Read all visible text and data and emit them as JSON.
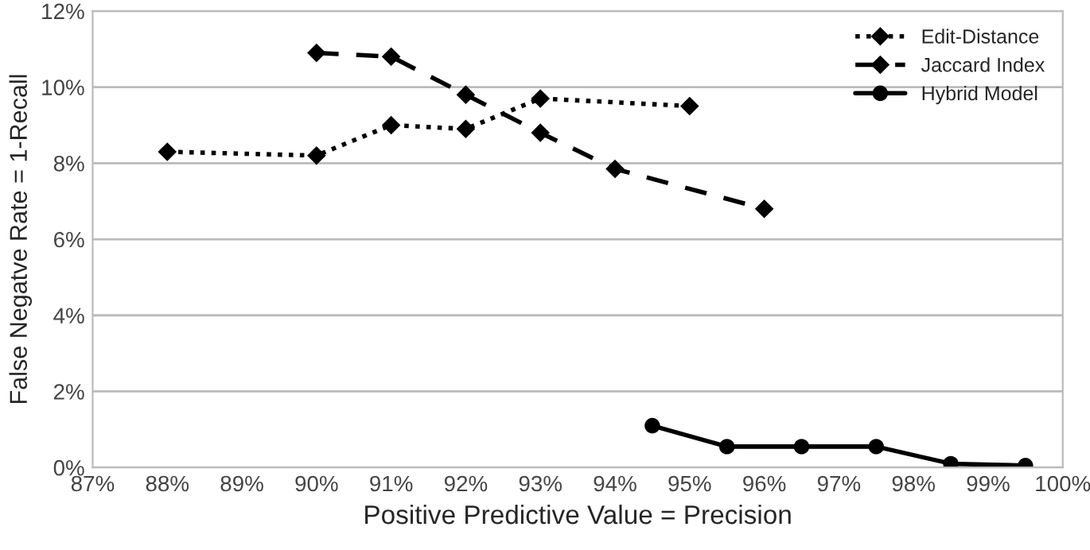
{
  "chart_data": {
    "type": "line",
    "xlabel": "Positive Predictive Value = Precision",
    "ylabel": "False Negatve Rate = 1-Recall",
    "xlim": [
      87,
      100
    ],
    "xticks": [
      {
        "value": 87,
        "label": "87%"
      },
      {
        "value": 88,
        "label": "88%"
      },
      {
        "value": 89,
        "label": "89%"
      },
      {
        "value": 90,
        "label": "90%"
      },
      {
        "value": 91,
        "label": "91%"
      },
      {
        "value": 92,
        "label": "92%"
      },
      {
        "value": 93,
        "label": "93%"
      },
      {
        "value": 94,
        "label": "94%"
      },
      {
        "value": 95,
        "label": "95%"
      },
      {
        "value": 96,
        "label": "96%"
      },
      {
        "value": 97,
        "label": "97%"
      },
      {
        "value": 98,
        "label": "98%"
      },
      {
        "value": 99,
        "label": "99%"
      },
      {
        "value": 100,
        "label": "100%"
      }
    ],
    "ylim": [
      0,
      12
    ],
    "yticks": [
      {
        "value": 0,
        "label": "0%"
      },
      {
        "value": 2,
        "label": "2%"
      },
      {
        "value": 4,
        "label": "4%"
      },
      {
        "value": 6,
        "label": "6%"
      },
      {
        "value": 8,
        "label": "8%"
      },
      {
        "value": 10,
        "label": "10%"
      },
      {
        "value": 12,
        "label": "12%"
      }
    ],
    "grid": "y",
    "legend": "top right",
    "series": [
      {
        "name": "Edit-Distance",
        "color": "#000000",
        "marker": "diamond",
        "line_style": "dotted",
        "x": [
          88,
          90,
          91,
          92,
          93,
          95
        ],
        "values": [
          8.3,
          8.2,
          9.0,
          8.9,
          9.7,
          9.5
        ]
      },
      {
        "name": "Jaccard Index",
        "color": "#000000",
        "marker": "diamond",
        "line_style": "dashed",
        "x": [
          90,
          91,
          92,
          93,
          94,
          96
        ],
        "values": [
          10.9,
          10.8,
          9.8,
          8.8,
          7.85,
          6.8
        ]
      },
      {
        "name": "Hybrid Model",
        "color": "#000000",
        "marker": "circle",
        "line_style": "solid",
        "x": [
          94.5,
          95.5,
          96.5,
          97.5,
          98.5,
          99.5
        ],
        "values": [
          1.1,
          0.55,
          0.55,
          0.55,
          0.1,
          0.05
        ]
      }
    ]
  }
}
